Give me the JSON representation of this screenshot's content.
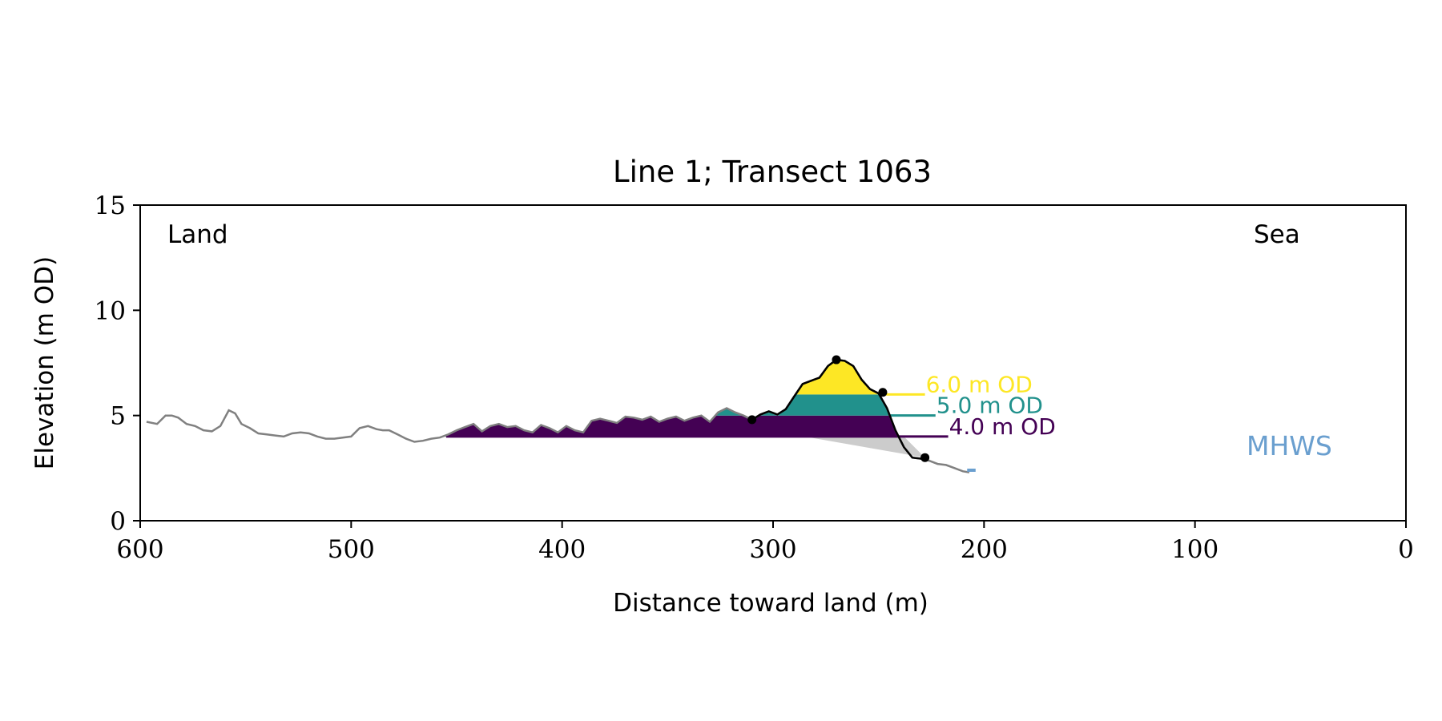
{
  "chart_data": {
    "type": "area",
    "title": "Line 1; Transect 1063",
    "xlabel": "Distance toward land (m)",
    "ylabel": "Elevation (m OD)",
    "xlim": [
      600,
      0
    ],
    "ylim": [
      0,
      15
    ],
    "x_ticks": [
      "600",
      "500",
      "400",
      "300",
      "200",
      "100",
      "0"
    ],
    "y_ticks": [
      "0",
      "5",
      "10",
      "15"
    ],
    "grid": false,
    "corner_labels": {
      "left": "Land",
      "right": "Sea"
    },
    "mhws": {
      "label": "MHWS",
      "elevation": 2.4,
      "color": "#6a9fcf"
    },
    "colors": {
      "profile": "#808080",
      "dune_outline": "#000000",
      "below_dune_fill": "#cccccc",
      "frame": "#000000"
    },
    "profile": {
      "x": [
        597,
        592,
        588,
        585,
        582,
        578,
        574,
        570,
        566,
        562,
        558,
        555,
        552,
        548,
        544,
        540,
        536,
        532,
        528,
        524,
        520,
        516,
        512,
        508,
        504,
        500,
        496,
        492,
        488,
        485,
        482,
        478,
        474,
        470,
        466,
        462,
        458,
        454,
        450,
        446,
        442,
        438,
        434,
        430,
        426,
        422,
        418,
        414,
        410,
        406,
        402,
        398,
        394,
        390,
        386,
        382,
        378,
        374,
        370,
        366,
        362,
        358,
        354,
        350,
        346,
        342,
        338,
        334,
        330,
        326,
        322,
        318,
        314,
        310,
        306,
        302,
        298,
        294,
        290,
        286,
        282,
        278,
        274,
        270,
        266,
        262,
        258,
        254,
        250,
        246,
        242,
        238,
        234,
        230,
        226,
        222,
        218,
        214,
        210,
        207
      ],
      "y": [
        4.7,
        4.6,
        5.0,
        5.0,
        4.9,
        4.6,
        4.5,
        4.3,
        4.25,
        4.5,
        5.25,
        5.1,
        4.6,
        4.4,
        4.15,
        4.1,
        4.05,
        4.0,
        4.15,
        4.2,
        4.15,
        4.0,
        3.9,
        3.9,
        3.95,
        4.0,
        4.4,
        4.5,
        4.35,
        4.3,
        4.3,
        4.1,
        3.9,
        3.75,
        3.8,
        3.9,
        3.95,
        4.1,
        4.3,
        4.45,
        4.6,
        4.25,
        4.5,
        4.6,
        4.45,
        4.5,
        4.3,
        4.2,
        4.55,
        4.4,
        4.2,
        4.5,
        4.3,
        4.2,
        4.75,
        4.85,
        4.75,
        4.65,
        4.95,
        4.9,
        4.8,
        4.95,
        4.7,
        4.85,
        4.95,
        4.75,
        4.9,
        5.0,
        4.7,
        5.15,
        5.35,
        5.15,
        5.0,
        4.8,
        5.05,
        5.2,
        5.05,
        5.3,
        5.9,
        6.5,
        6.65,
        6.8,
        7.35,
        7.65,
        7.6,
        7.35,
        6.7,
        6.25,
        6.05,
        5.35,
        4.3,
        3.5,
        3.0,
        2.95,
        2.85,
        2.7,
        2.65,
        2.5,
        2.35,
        2.3
      ]
    },
    "dune": {
      "toe": {
        "x": 310,
        "y": 4.8
      },
      "crest": {
        "x": 270,
        "y": 7.65
      },
      "heel": {
        "x": 248,
        "y": 6.1
      },
      "seaward_toe": {
        "x": 228,
        "y": 3.0
      }
    },
    "levels": [
      {
        "label": "6.0 m OD",
        "elevation": 6.0,
        "color": "#fde725",
        "label_x": 228
      },
      {
        "label": "5.0 m OD",
        "elevation": 5.0,
        "color": "#21918c",
        "label_x": 223
      },
      {
        "label": "4.0 m OD",
        "elevation": 4.0,
        "color": "#440154",
        "label_x": 217
      }
    ]
  }
}
